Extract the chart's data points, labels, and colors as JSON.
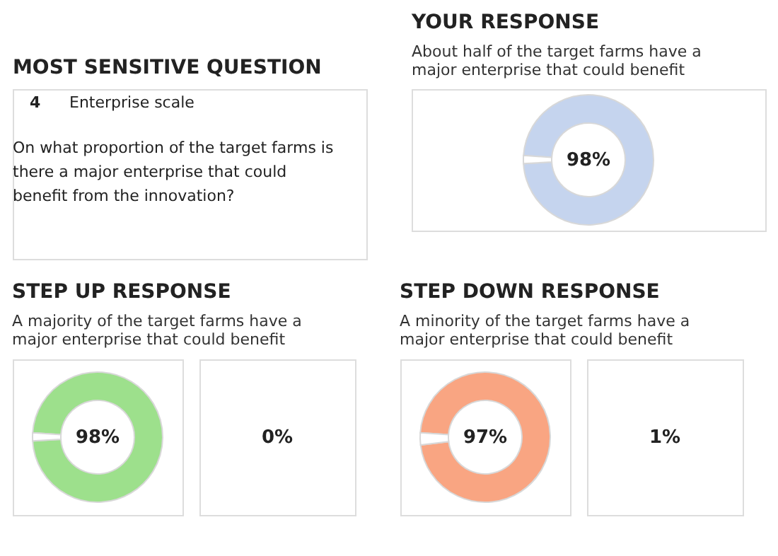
{
  "chart_data": [
    {
      "type": "other",
      "title": "MOST SENSITIVE QUESTION",
      "annotations": [
        "4",
        "Enterprise scale",
        "On what proportion of the target farms is there a major enterprise that could benefit from the innovation?"
      ]
    },
    {
      "type": "donut",
      "title": "YOUR RESPONSE",
      "subtitle": "About half of the target farms have a major enterprise that could benefit",
      "values": [
        98,
        2
      ],
      "colors": [
        "#c5d4ee",
        "#ffffff"
      ],
      "value_labels": [
        "98%",
        null
      ]
    },
    {
      "type": "donut",
      "title": "STEP UP RESPONSE",
      "subtitle": "A majority of the target farms have a major enterprise that could benefit",
      "values": [
        98,
        2
      ],
      "colors": [
        "#9de08c",
        "#ffffff"
      ],
      "value_labels": [
        "98%",
        null
      ]
    },
    {
      "type": "other",
      "annotations": [
        "0%"
      ]
    },
    {
      "type": "donut",
      "title": "STEP DOWN RESPONSE",
      "subtitle": "A minority of the target farms have a major enterprise that could benefit",
      "values": [
        97,
        3
      ],
      "colors": [
        "#f9a582",
        "#ffffff"
      ],
      "value_labels": [
        "97%",
        null
      ]
    },
    {
      "type": "other",
      "annotations": [
        "1%"
      ]
    }
  ]
}
